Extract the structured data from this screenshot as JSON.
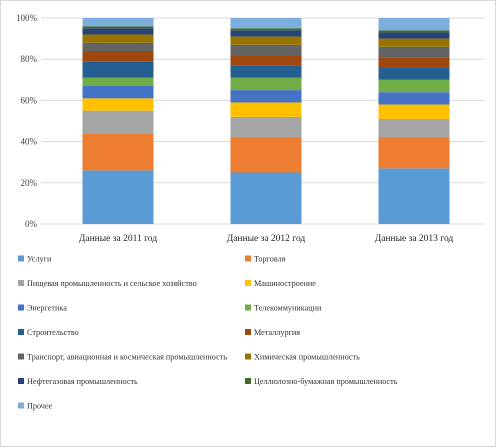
{
  "chart_data": {
    "type": "bar",
    "stacked": "percent",
    "categories": [
      "Данные за 2011 год",
      "Данные за 2012 год",
      "Данные за 2013 год"
    ],
    "y_ticks": [
      "0%",
      "20%",
      "40%",
      "60%",
      "80%",
      "100%"
    ],
    "ylim": [
      0,
      100
    ],
    "grid": true,
    "legend_position": "bottom",
    "series": [
      {
        "name": "Услуги",
        "color": "#5B9BD5",
        "values": [
          26,
          25,
          27
        ]
      },
      {
        "name": "Торговля",
        "color": "#ED7D31",
        "values": [
          18,
          17,
          15
        ]
      },
      {
        "name": "Пищевая промышленность и сельское хозяйство",
        "color": "#A5A5A5",
        "values": [
          11,
          10,
          9
        ]
      },
      {
        "name": "Машиностроение",
        "color": "#FFC000",
        "values": [
          6,
          7,
          7
        ]
      },
      {
        "name": "Энергетика",
        "color": "#4472C4",
        "values": [
          6,
          6,
          6
        ]
      },
      {
        "name": "Телекоммуникации",
        "color": "#70AD47",
        "values": [
          4,
          6,
          6
        ]
      },
      {
        "name": "Строительство",
        "color": "#255E91",
        "values": [
          8,
          6,
          6
        ]
      },
      {
        "name": "Металлургия",
        "color": "#9E480E",
        "values": [
          5,
          5,
          5
        ]
      },
      {
        "name": "Транспорт, авиационная и космическая промышленность",
        "color": "#636363",
        "values": [
          4,
          5,
          5
        ]
      },
      {
        "name": "Химическая промышленность",
        "color": "#997300",
        "values": [
          4,
          4,
          4
        ]
      },
      {
        "name": "Нефтегазовая промышленность",
        "color": "#264478",
        "values": [
          3,
          3,
          3
        ]
      },
      {
        "name": "Целлюлозно-бумажная промышленность",
        "color": "#43682B",
        "values": [
          1,
          1,
          1
        ]
      },
      {
        "name": "Прочее",
        "color": "#7CAFDD",
        "values": [
          4,
          5,
          6
        ]
      }
    ]
  }
}
